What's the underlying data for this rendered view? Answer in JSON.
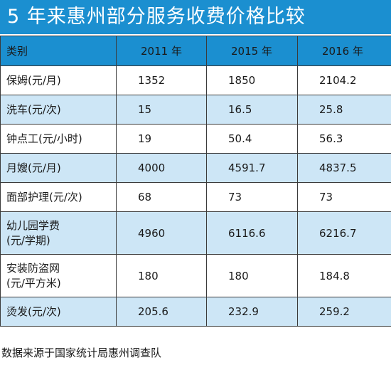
{
  "title": "5 年来惠州部分服务收费价格比较",
  "colors": {
    "header_bg": "#1b8fd0",
    "shade_bg": "#cde6f6",
    "border": "#3b3b3b"
  },
  "table": {
    "headers": [
      "类别",
      "2011 年",
      "2015 年",
      "2016 年"
    ],
    "rows": [
      {
        "category": [
          "保姆(元/月)"
        ],
        "v2011": "1352",
        "v2015": "1850",
        "v2016": "2104.2"
      },
      {
        "category": [
          "洗车(元/次)"
        ],
        "v2011": "15",
        "v2015": "16.5",
        "v2016": "25.8"
      },
      {
        "category": [
          "钟点工(元/小时)"
        ],
        "v2011": "19",
        "v2015": "50.4",
        "v2016": "56.3"
      },
      {
        "category": [
          "月嫂(元/月)"
        ],
        "v2011": "4000",
        "v2015": "4591.7",
        "v2016": "4837.5"
      },
      {
        "category": [
          "面部护理(元/次)"
        ],
        "v2011": "68",
        "v2015": "73",
        "v2016": "73"
      },
      {
        "category": [
          "幼儿园学费",
          "(元/学期)"
        ],
        "v2011": "4960",
        "v2015": "6116.6",
        "v2016": "6216.7"
      },
      {
        "category": [
          "安装防盗网",
          "(元/平方米)"
        ],
        "v2011": "180",
        "v2015": "180",
        "v2016": "184.8"
      },
      {
        "category": [
          "烫发(元/次)"
        ],
        "v2011": "205.6",
        "v2015": "232.9",
        "v2016": "259.2"
      }
    ]
  },
  "footer": "数据来源于国家统计局惠州调查队"
}
